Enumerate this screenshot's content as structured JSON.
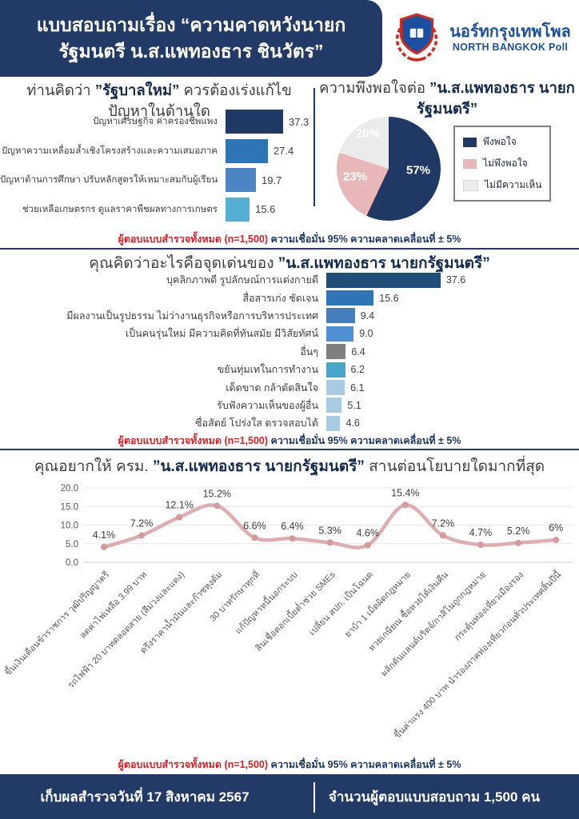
{
  "header": {
    "title_line1": "แบบสอบถามเรื่อง “ความคาดหวังนายก",
    "title_line2": "รัฐมนตรี น.ส.แพทองธาร ชินวัตร”",
    "brand": {
      "name_thai": "นอร์ทกรุงเทพโพล",
      "name_english": "NORTH BANGKOK Poll",
      "logo_icon": "crest-with-laurel-wreath"
    }
  },
  "sections": {
    "problems": {
      "title_prefix": "ท่านคิดว่า ",
      "title_bold": "”รัฐบาลใหม่”",
      "title_suffix": " ควรต้องเร่งแก้ไขปัญหาในด้านใด"
    },
    "satisfaction": {
      "title_prefix": "ความพึงพอใจต่อ ",
      "title_bold": "”น.ส.แพทองธาร นายกรัฐมนตรี”",
      "title_suffix": ""
    },
    "strengths": {
      "title_prefix": "คุณคิดว่าอะไรคือจุดเด่นของ ",
      "title_bold": "”น.ส.แพทองธาร นายกรัฐมนตรี”",
      "title_suffix": ""
    },
    "policies": {
      "title_prefix": "คุณอยากให้ ครม. ",
      "title_bold": "”น.ส.แพทองธาร นายกรัฐมนตรี”",
      "title_suffix": " สานต่อนโยบายใดมากที่สุด"
    }
  },
  "survey_note": {
    "red_part": "ผู้ตอบแบบสำรวจทั้งหมด (n=1,500)",
    "navy_part": " ความเชื่อมั่น 95% ความคลาดเคลื่อนที่ ± 5%"
  },
  "chart_data": [
    {
      "type": "bar",
      "orientation": "horizontal",
      "title": "ท่านคิดว่า ”รัฐบาลใหม่” ควรต้องเร่งแก้ไขปัญหาในด้านใด",
      "categories": [
        "ปัญหาเศรษฐกิจ ค่าครองชีพแพง",
        "ปัญหาความเหลื่อมล้ำเชิงโครงสร้างและความเสมอภาค",
        "ปัญหาด้านการศึกษา ปรับหลักสูตรให้เหมาะสมกับผู้เรียน",
        "ช่วยเหลือเกษตรกร ดูแลราคาพืชผลทางการเกษตร"
      ],
      "values": [
        37.3,
        27.4,
        19.7,
        15.6
      ],
      "value_labels": [
        "37.3",
        "27.4",
        "19.7",
        "15.6"
      ],
      "bar_colors": [
        "#1f3864",
        "#2e75b6",
        "#4c84c6",
        "#55aed4"
      ]
    },
    {
      "type": "pie",
      "title": "ความพึงพอใจต่อ ”น.ส.แพทองธาร นายกรัฐมนตรี”",
      "labels": [
        "พึงพอใจ",
        "ไม่พึงพอใจ",
        "ไม่มีความเห็น"
      ],
      "values": [
        57,
        23,
        20
      ],
      "slice_labels": [
        "57%",
        "23%",
        "20%"
      ],
      "colors": [
        "#1f3864",
        "#e8b7ba",
        "#ebebeb"
      ],
      "legend_position": "right",
      "start_angle": "top, clockwise"
    },
    {
      "type": "bar",
      "orientation": "horizontal",
      "title": "คุณคิดว่าอะไรคือจุดเด่นของ ”น.ส.แพทองธาร นายกรัฐมนตรี”",
      "categories": [
        "บุคลิกภาพดี รูปลักษณ์การแต่งกายดี",
        "สื่อสารเก่ง ชัดเจน",
        "มีผลงานเป็นรูปธรรม ไม่ว่างานธุรกิจหรือการบริหารประเทศ",
        "เป็นคนรุ่นใหม่ มีความคิดที่ทันสมัย มีวิสัยทัศน์",
        "อื่นๆ",
        "ขยันทุ่มเทในการทำงาน",
        "เด็ดขาด กล้าตัดสินใจ",
        "รับฟังความเห็นของผู้อื่น",
        "ซื่อสัตย์ โปร่งใส ตรวจสอบได้"
      ],
      "values": [
        37.6,
        15.6,
        9.4,
        9.0,
        6.4,
        6.2,
        6.1,
        5.1,
        4.6
      ],
      "value_labels": [
        "37.6",
        "15.6",
        "9.4",
        "9.0",
        "6.4",
        "6.2",
        "6.1",
        "5.1",
        "4.6"
      ],
      "bar_colors": [
        "#1f4e79",
        "#2e75b6",
        "#457dbd",
        "#4f8fd4",
        "#7f7f7f",
        "#49a5c9",
        "#a9cbe2",
        "#a9cbe2",
        "#a9cbe2"
      ]
    },
    {
      "type": "line",
      "title": "คุณอยากให้ ครม. ”น.ส.แพทองธาร นายกรัฐมนตรี” สานต่อนโยบายใดมากที่สุด",
      "categories": [
        "ขึ้นเงินเดือนข้าราชการ วุฒิปริญญาตรี",
        "ลดค่าไฟเหลือ 3.99 บาท",
        "รถไฟฟ้า 20 บาทตลอดสาย (สีม่วงและแดง)",
        "ตรึงราคาน้ำมันและก๊าซหุงต้ม",
        "30 บาทรักษาทุกที่",
        "แก้ปัญหาหนี้นอกระบบ",
        "สินเชื่อดอกเบี้ยต่ำช่วย SMEs",
        "เปลี่ยน สปก. เป็นโฉนด",
        "ยาบ้า 1 เม็ดผิดกฎหมาย",
        "หวยเกษียณ ซื้อหวยได้เงินคืน",
        "ผลักดันแลนด์บริดจ์/กาสิโนถูกกฎหมาย",
        "กระตุ้นท่องเที่ยวเมืองรอง",
        "ขึ้นค่าแรง 400 บาท นำร่องภาคท่องเที่ยวก่อนทั่วประเทศสิ้นปีนี้"
      ],
      "values": [
        4.1,
        7.2,
        12.1,
        15.2,
        6.6,
        6.4,
        5.3,
        4.6,
        15.4,
        7.2,
        4.7,
        5.2,
        6
      ],
      "point_labels": [
        "4.1%",
        "7.2%",
        "12.1%",
        "15.2%",
        "6.6%",
        "6.4%",
        "5.3%",
        "4.6%",
        "15.4%",
        "7.2%",
        "4.7%",
        "5.2%",
        "6%"
      ],
      "ylim": [
        0,
        20
      ],
      "y_tick_labels": [
        "0.0",
        "5.0",
        "10.0",
        "15.0",
        "20.0"
      ],
      "grid": "horizontal, light",
      "line_color": "#dfadaf",
      "marker_color": "#d49a9c"
    }
  ],
  "footer": {
    "left": "เก็บผลสำรวจวันที่ 17 สิงหาคม 2567",
    "right": "จำนวนผู้ตอบแบบสอบถาม 1,500 คน"
  },
  "colors": {
    "header_navy": "#223a66",
    "brand_blue": "#1d4fa0",
    "note_red": "#d81f26",
    "note_navy": "#1f3864",
    "divider_navy": "#223a66",
    "crest_red": "#d42a1e"
  }
}
